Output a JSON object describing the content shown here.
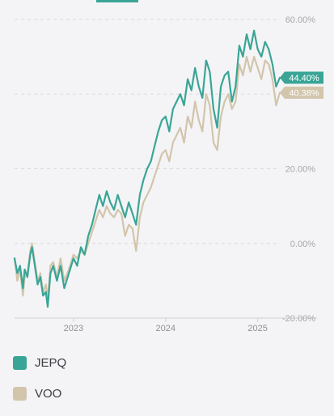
{
  "colors": {
    "jepq": "#3aa596",
    "voo": "#d2c5ab",
    "grid": "#dadade",
    "background": "#f4f4f6"
  },
  "legend": [
    {
      "label": "JEPQ"
    },
    {
      "label": "VOO"
    }
  ],
  "chart_data": {
    "type": "line",
    "title": "",
    "xlabel": "",
    "ylabel": "",
    "ylim": [
      -20,
      60
    ],
    "y_ticks": [
      "60.00%",
      "40.00%",
      "20.00%",
      "0.00%",
      "-20.00%"
    ],
    "y_tick_values": [
      60,
      40,
      20,
      0,
      -20
    ],
    "x_ticks": [
      "2023",
      "2024",
      "2025"
    ],
    "x_tick_values": [
      2023.0,
      2024.0,
      2025.0
    ],
    "xlim": [
      2022.36,
      2025.24
    ],
    "grid": true,
    "legend_position": "bottom",
    "end_labels": [
      {
        "series": "JEPQ",
        "text": "44.40%",
        "value": 44.4
      },
      {
        "series": "VOO",
        "text": "40.38%",
        "value": 40.38
      }
    ],
    "series": [
      {
        "name": "JEPQ",
        "x": [
          2022.36,
          2022.39,
          2022.42,
          2022.45,
          2022.47,
          2022.5,
          2022.53,
          2022.55,
          2022.58,
          2022.61,
          2022.64,
          2022.67,
          2022.7,
          2022.72,
          2022.75,
          2022.78,
          2022.82,
          2022.86,
          2022.9,
          2022.95,
          2023.0,
          2023.04,
          2023.08,
          2023.12,
          2023.16,
          2023.2,
          2023.24,
          2023.28,
          2023.32,
          2023.36,
          2023.4,
          2023.44,
          2023.48,
          2023.52,
          2023.56,
          2023.6,
          2023.64,
          2023.68,
          2023.72,
          2023.76,
          2023.8,
          2023.84,
          2023.88,
          2023.92,
          2023.96,
          2024.0,
          2024.04,
          2024.08,
          2024.12,
          2024.16,
          2024.2,
          2024.24,
          2024.28,
          2024.32,
          2024.36,
          2024.4,
          2024.44,
          2024.48,
          2024.52,
          2024.56,
          2024.6,
          2024.64,
          2024.68,
          2024.72,
          2024.76,
          2024.8,
          2024.84,
          2024.88,
          2024.92,
          2024.96,
          2025.0,
          2025.04,
          2025.08,
          2025.12,
          2025.16,
          2025.2,
          2025.24
        ],
        "values": [
          -4,
          -8,
          -6,
          -12,
          -7,
          -9,
          -3,
          -1,
          -6,
          -11,
          -9,
          -14,
          -13,
          -17,
          -8,
          -6,
          -10,
          -6,
          -12,
          -8,
          -4,
          -6,
          -1,
          -3,
          2,
          5,
          9,
          13,
          10,
          14,
          11,
          9,
          13,
          10,
          7,
          11,
          8,
          5,
          13,
          17,
          20,
          22,
          26,
          30,
          33,
          34,
          30,
          36,
          38,
          40,
          37,
          44,
          41,
          47,
          42,
          39,
          49,
          46,
          36,
          31,
          42,
          45,
          46,
          38,
          42,
          53,
          50,
          56,
          52,
          57,
          52,
          50,
          54,
          52,
          48,
          42,
          44.4
        ]
      },
      {
        "name": "VOO",
        "x": [
          2022.36,
          2022.39,
          2022.42,
          2022.45,
          2022.47,
          2022.5,
          2022.53,
          2022.55,
          2022.58,
          2022.61,
          2022.64,
          2022.67,
          2022.7,
          2022.72,
          2022.75,
          2022.78,
          2022.82,
          2022.86,
          2022.9,
          2022.95,
          2023.0,
          2023.04,
          2023.08,
          2023.12,
          2023.16,
          2023.2,
          2023.24,
          2023.28,
          2023.32,
          2023.36,
          2023.4,
          2023.44,
          2023.48,
          2023.52,
          2023.56,
          2023.6,
          2023.64,
          2023.68,
          2023.72,
          2023.76,
          2023.8,
          2023.84,
          2023.88,
          2023.92,
          2023.96,
          2024.0,
          2024.04,
          2024.08,
          2024.12,
          2024.16,
          2024.2,
          2024.24,
          2024.28,
          2024.32,
          2024.36,
          2024.4,
          2024.44,
          2024.48,
          2024.52,
          2024.56,
          2024.6,
          2024.64,
          2024.68,
          2024.72,
          2024.76,
          2024.8,
          2024.84,
          2024.88,
          2024.92,
          2024.96,
          2025.0,
          2025.04,
          2025.08,
          2025.12,
          2025.16,
          2025.2,
          2025.24
        ],
        "values": [
          -4,
          -10,
          -7,
          -14,
          -9,
          -8,
          -2,
          0,
          -5,
          -10,
          -8,
          -13,
          -11,
          -15,
          -6,
          -5,
          -9,
          -4,
          -10,
          -7,
          -3,
          -4,
          -2,
          -3,
          0,
          3,
          6,
          9,
          7,
          10,
          8,
          7,
          9,
          8,
          2,
          5,
          4,
          -2,
          7,
          11,
          13,
          15,
          18,
          21,
          24,
          25,
          22,
          27,
          29,
          31,
          27,
          34,
          31,
          38,
          33,
          30,
          40,
          37,
          27,
          25,
          34,
          38,
          40,
          36,
          38,
          48,
          45,
          50,
          46,
          50,
          47,
          44,
          49,
          48,
          44,
          37,
          40.38
        ]
      }
    ]
  }
}
